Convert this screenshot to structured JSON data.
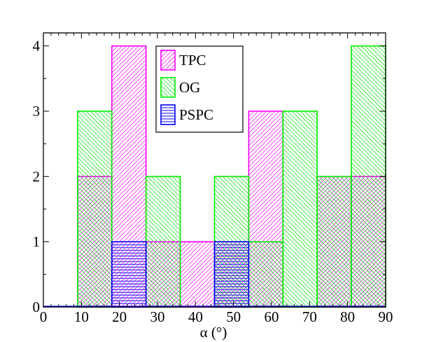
{
  "chart_data": {
    "type": "bar",
    "xlabel": "α (°)",
    "ylabel": "",
    "xlim": [
      0,
      90
    ],
    "ylim": [
      0,
      4.2
    ],
    "x_ticks": [
      0,
      10,
      20,
      30,
      40,
      50,
      60,
      70,
      80,
      90
    ],
    "y_ticks": [
      0,
      1,
      2,
      3,
      4
    ],
    "grid": false,
    "legend_position": "top-center",
    "series": [
      {
        "name": "TPC",
        "color": "#ff00ff",
        "bins": [
          {
            "x0": 9,
            "x1": 18,
            "value": 2
          },
          {
            "x0": 18,
            "x1": 27,
            "value": 4
          },
          {
            "x0": 27,
            "x1": 36,
            "value": 1
          },
          {
            "x0": 36,
            "x1": 45,
            "value": 1
          },
          {
            "x0": 45,
            "x1": 54,
            "value": 1
          },
          {
            "x0": 54,
            "x1": 63,
            "value": 3
          },
          {
            "x0": 63,
            "x1": 72,
            "value": 0
          },
          {
            "x0": 72,
            "x1": 81,
            "value": 2
          },
          {
            "x0": 81,
            "x1": 90,
            "value": 2
          }
        ]
      },
      {
        "name": "OG",
        "color": "#00ee00",
        "bins": [
          {
            "x0": 9,
            "x1": 18,
            "value": 3
          },
          {
            "x0": 18,
            "x1": 27,
            "value": 0
          },
          {
            "x0": 27,
            "x1": 36,
            "value": 2
          },
          {
            "x0": 36,
            "x1": 45,
            "value": 0
          },
          {
            "x0": 45,
            "x1": 54,
            "value": 2
          },
          {
            "x0": 54,
            "x1": 63,
            "value": 1
          },
          {
            "x0": 63,
            "x1": 72,
            "value": 3
          },
          {
            "x0": 72,
            "x1": 81,
            "value": 2
          },
          {
            "x0": 81,
            "x1": 90,
            "value": 4
          }
        ]
      },
      {
        "name": "PSPC",
        "color": "#0000ff",
        "bins": [
          {
            "x0": 18,
            "x1": 27,
            "value": 1
          },
          {
            "x0": 45,
            "x1": 54,
            "value": 1
          }
        ]
      }
    ]
  }
}
